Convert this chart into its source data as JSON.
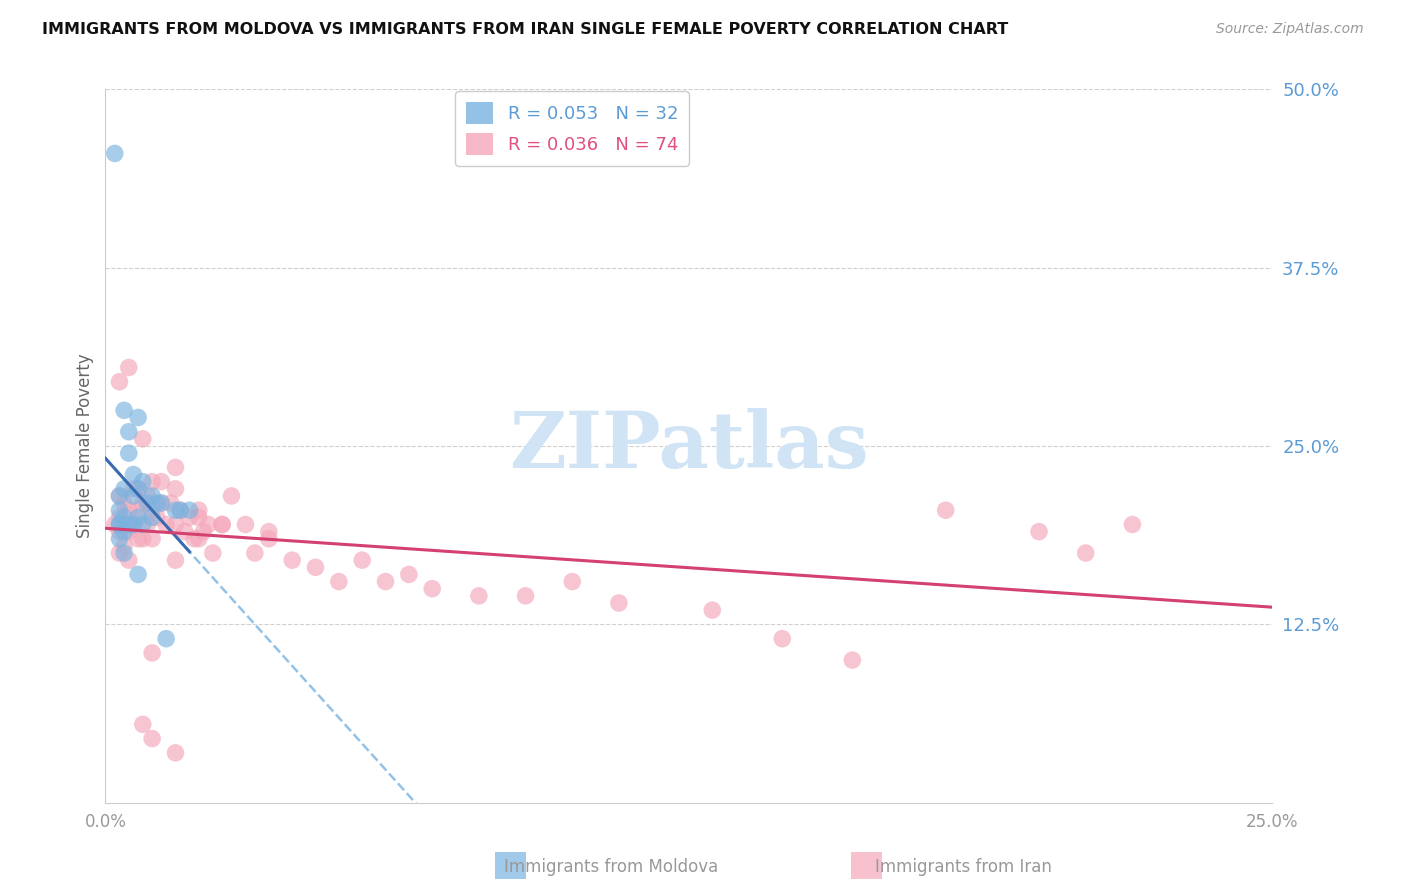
{
  "title": "IMMIGRANTS FROM MOLDOVA VS IMMIGRANTS FROM IRAN SINGLE FEMALE POVERTY CORRELATION CHART",
  "source": "Source: ZipAtlas.com",
  "ylabel": "Single Female Poverty",
  "right_axis_labels": [
    "50.0%",
    "37.5%",
    "25.0%",
    "12.5%"
  ],
  "moldova_color": "#7ab3e0",
  "iran_color": "#f4a7b9",
  "trend_moldova_color": "#3a6ab0",
  "trend_iran_color": "#d44070",
  "trend_dash_color": "#7ab3e0",
  "watermark": "ZIPatlas",
  "watermark_color": "#d0e4f5",
  "xlim": [
    0.0,
    0.25
  ],
  "ylim": [
    0.0,
    0.5
  ],
  "moldova_x": [
    0.002,
    0.003,
    0.003,
    0.003,
    0.003,
    0.004,
    0.004,
    0.004,
    0.005,
    0.005,
    0.005,
    0.006,
    0.006,
    0.006,
    0.007,
    0.007,
    0.007,
    0.008,
    0.008,
    0.009,
    0.01,
    0.01,
    0.011,
    0.012,
    0.013,
    0.015,
    0.016,
    0.018,
    0.003,
    0.004,
    0.004,
    0.007
  ],
  "moldova_y": [
    0.455,
    0.215,
    0.205,
    0.195,
    0.185,
    0.275,
    0.22,
    0.2,
    0.26,
    0.245,
    0.195,
    0.23,
    0.215,
    0.195,
    0.27,
    0.22,
    0.2,
    0.225,
    0.195,
    0.21,
    0.215,
    0.2,
    0.21,
    0.21,
    0.115,
    0.205,
    0.205,
    0.205,
    0.195,
    0.19,
    0.175,
    0.16
  ],
  "iran_x": [
    0.002,
    0.003,
    0.003,
    0.003,
    0.003,
    0.004,
    0.004,
    0.004,
    0.005,
    0.005,
    0.005,
    0.006,
    0.006,
    0.007,
    0.007,
    0.007,
    0.008,
    0.008,
    0.009,
    0.009,
    0.01,
    0.01,
    0.01,
    0.011,
    0.012,
    0.013,
    0.014,
    0.015,
    0.015,
    0.016,
    0.017,
    0.018,
    0.019,
    0.02,
    0.021,
    0.022,
    0.023,
    0.025,
    0.027,
    0.03,
    0.032,
    0.035,
    0.04,
    0.045,
    0.05,
    0.055,
    0.06,
    0.065,
    0.07,
    0.08,
    0.09,
    0.1,
    0.11,
    0.13,
    0.145,
    0.16,
    0.18,
    0.2,
    0.21,
    0.22,
    0.003,
    0.005,
    0.008,
    0.012,
    0.015,
    0.02,
    0.025,
    0.035,
    0.008,
    0.01,
    0.015,
    0.01,
    0.015,
    0.02
  ],
  "iran_y": [
    0.195,
    0.215,
    0.2,
    0.19,
    0.175,
    0.21,
    0.195,
    0.18,
    0.205,
    0.19,
    0.17,
    0.22,
    0.195,
    0.22,
    0.205,
    0.185,
    0.21,
    0.185,
    0.215,
    0.195,
    0.225,
    0.205,
    0.185,
    0.2,
    0.21,
    0.195,
    0.21,
    0.22,
    0.195,
    0.205,
    0.19,
    0.2,
    0.185,
    0.2,
    0.19,
    0.195,
    0.175,
    0.195,
    0.215,
    0.195,
    0.175,
    0.19,
    0.17,
    0.165,
    0.155,
    0.17,
    0.155,
    0.16,
    0.15,
    0.145,
    0.145,
    0.155,
    0.14,
    0.135,
    0.115,
    0.1,
    0.205,
    0.19,
    0.175,
    0.195,
    0.295,
    0.305,
    0.255,
    0.225,
    0.235,
    0.205,
    0.195,
    0.185,
    0.055,
    0.045,
    0.035,
    0.105,
    0.17,
    0.185
  ]
}
